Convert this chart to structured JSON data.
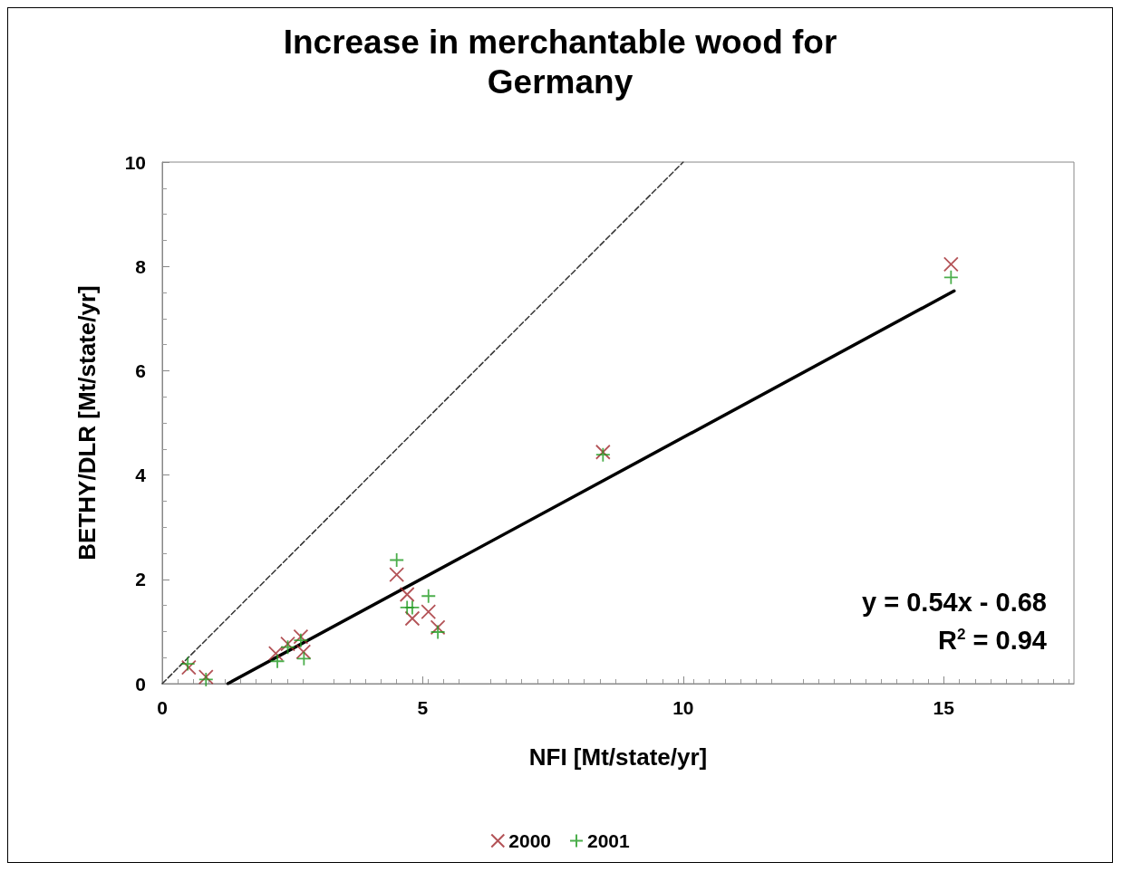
{
  "chart_data": {
    "type": "scatter",
    "title": "Increase in merchantable wood for\nGermany",
    "xlabel": "NFI [Mt/state/yr]",
    "ylabel": "BETHY/DLR [Mt/state/yr]",
    "xlim": [
      0,
      17.5
    ],
    "xticks": [
      0,
      5,
      10,
      15
    ],
    "ylim": [
      0,
      10
    ],
    "yticks": [
      0,
      2,
      4,
      6,
      8,
      10
    ],
    "grid": false,
    "legend": "bottom",
    "annotations": [
      "y = 0.54x - 0.68",
      "R$^{2}$ = 0.94"
    ],
    "series": [
      {
        "name": "2000",
        "marker": "cross",
        "color": "#a0282d",
        "x": [
          0.51,
          0.84,
          2.18,
          2.41,
          2.66,
          2.71,
          4.5,
          4.7,
          4.8,
          5.11,
          5.29,
          8.46,
          15.14
        ],
        "values": [
          0.31,
          0.13,
          0.58,
          0.76,
          0.9,
          0.61,
          2.09,
          1.71,
          1.25,
          1.38,
          1.08,
          4.44,
          8.04
        ]
      },
      {
        "name": "2001",
        "marker": "plus",
        "color": "#1f9a1f",
        "x": [
          0.49,
          0.84,
          2.21,
          2.41,
          2.66,
          2.72,
          4.5,
          4.7,
          4.8,
          5.11,
          5.29,
          8.46,
          15.14
        ],
        "values": [
          0.38,
          0.08,
          0.43,
          0.7,
          0.83,
          0.48,
          2.37,
          1.46,
          1.46,
          1.68,
          0.99,
          4.39,
          7.79
        ]
      },
      {
        "type": "line",
        "color": "#000000",
        "line_style": "solid",
        "x": [
          1.26,
          15.2
        ],
        "values": [
          0,
          7.53
        ]
      },
      {
        "type": "line",
        "color": "#333333",
        "line_style": "dashed",
        "x": [
          0,
          10
        ],
        "values": [
          0,
          10
        ]
      }
    ]
  }
}
